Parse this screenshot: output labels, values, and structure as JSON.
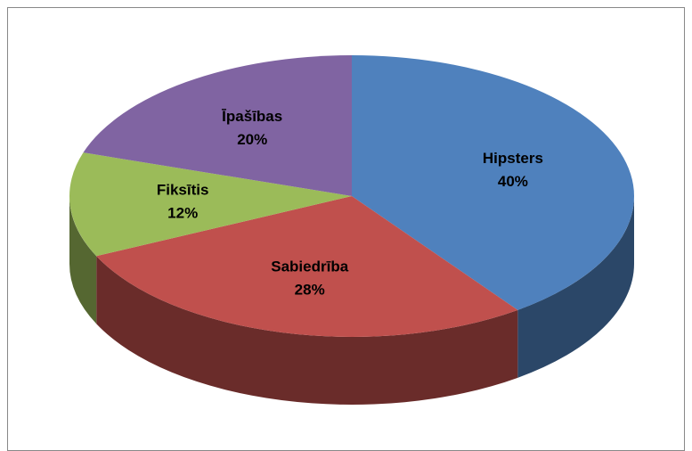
{
  "chart_data": {
    "type": "pie",
    "categories": [
      "Hipsters",
      "Sabiedrība",
      "Fiksītis",
      "Īpašības"
    ],
    "values": [
      40,
      28,
      12,
      20
    ],
    "value_labels": [
      "40%",
      "28%",
      "12%",
      "20%"
    ],
    "colors": [
      "#4f81bd",
      "#c0504d",
      "#9bbb59",
      "#8064a2"
    ]
  }
}
